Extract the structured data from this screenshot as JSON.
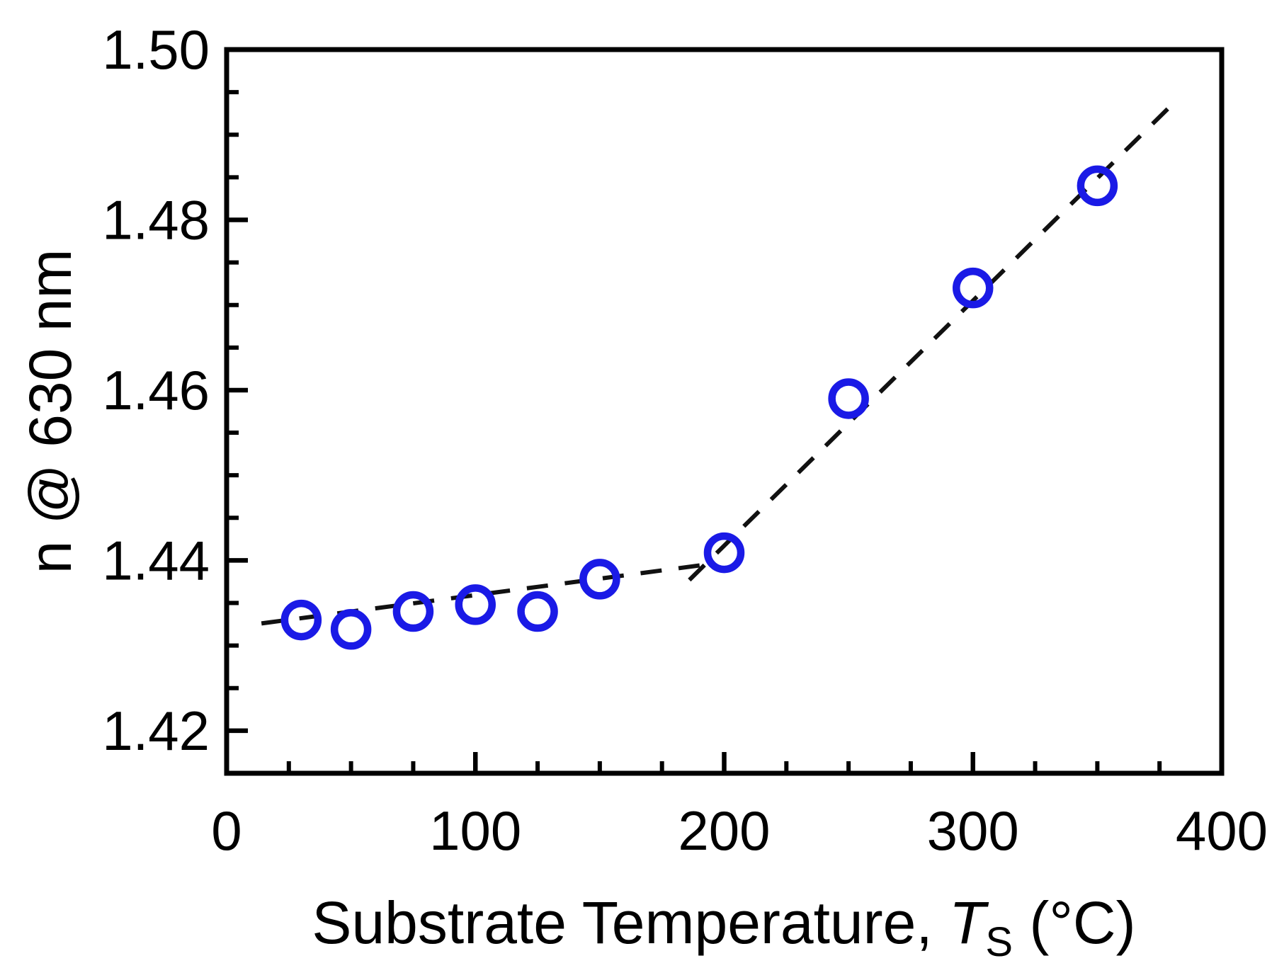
{
  "chart_data": {
    "type": "scatter",
    "title": "",
    "xlabel": "Substrate Temperature, T_S (°C)",
    "xlabel_parts": {
      "prefix": "Substrate Temperature, ",
      "symbol": "T",
      "subscript": "S",
      "suffix": " (°C)"
    },
    "ylabel": "n @ 630 nm",
    "xlim": [
      0,
      400
    ],
    "ylim": [
      1.415,
      1.5
    ],
    "x_major_ticks": [
      0,
      100,
      200,
      300,
      400
    ],
    "x_tick_labels": [
      "0",
      "100",
      "200",
      "300",
      "400"
    ],
    "x_minor_step": 25,
    "y_major_ticks": [
      1.42,
      1.44,
      1.46,
      1.48,
      1.5
    ],
    "y_tick_labels": [
      "1.42",
      "1.44",
      "1.46",
      "1.48",
      "1.50"
    ],
    "y_minor_step": 0.005,
    "grid": false,
    "legend": null,
    "series": [
      {
        "name": "n @ 630 nm vs substrate temperature",
        "marker": "open-circle",
        "color": "#1a1ae6",
        "x": [
          30,
          50,
          75,
          100,
          125,
          150,
          200,
          250,
          300,
          350
        ],
        "y": [
          1.433,
          1.4319,
          1.434,
          1.4348,
          1.434,
          1.4378,
          1.4409,
          1.459,
          1.472,
          1.484
        ]
      }
    ],
    "trend_lines": [
      {
        "style": "dashed",
        "color": "#111111",
        "x1": 14,
        "y1": 1.4326,
        "x2": 195,
        "y2": 1.4396
      },
      {
        "style": "dashed",
        "color": "#111111",
        "x1": 186,
        "y1": 1.4377,
        "x2": 382,
        "y2": 1.4941
      }
    ]
  },
  "colors": {
    "marker": "#1a1ae6",
    "axis": "#000000",
    "trend": "#111111",
    "background": "#ffffff"
  }
}
